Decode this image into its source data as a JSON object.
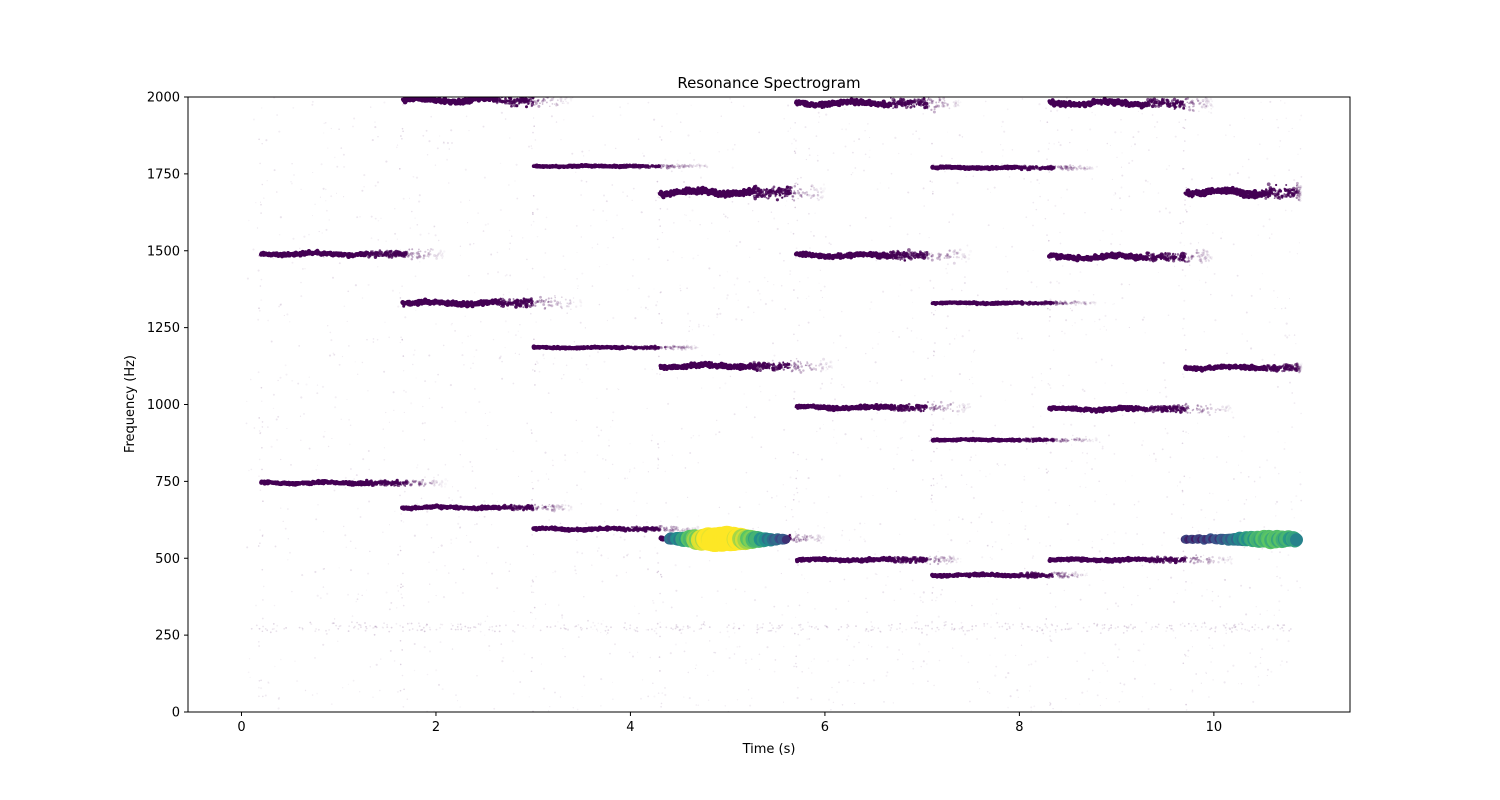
{
  "chart_data": {
    "type": "scatter",
    "title": "Resonance Spectrogram",
    "xlabel": "Time (s)",
    "ylabel": "Frequency (Hz)",
    "xlim": [
      -0.55,
      11.4
    ],
    "ylim": [
      0,
      2000
    ],
    "xticks": [
      0,
      2,
      4,
      6,
      8,
      10
    ],
    "yticks": [
      0,
      250,
      500,
      750,
      1000,
      1250,
      1500,
      1750,
      2000
    ],
    "grid": false,
    "colormap": [
      "#440154",
      "#3b528b",
      "#21918c",
      "#5ec962",
      "#fde725"
    ],
    "tracks": [
      {
        "t0": 0.2,
        "t1": 1.7,
        "freq": 745,
        "jitter": 6,
        "fade_end": 2.1
      },
      {
        "t0": 0.2,
        "t1": 1.7,
        "freq": 1490,
        "jitter": 8,
        "fade_end": 2.1
      },
      {
        "t0": 1.65,
        "t1": 3.0,
        "freq": 665,
        "jitter": 6,
        "fade_end": 3.4
      },
      {
        "t0": 1.65,
        "t1": 3.0,
        "freq": 1330,
        "jitter": 10,
        "fade_end": 3.5
      },
      {
        "t0": 1.65,
        "t1": 3.0,
        "freq": 1990,
        "jitter": 12,
        "fade_end": 3.4
      },
      {
        "t0": 3.0,
        "t1": 4.3,
        "freq": 595,
        "jitter": 5,
        "fade_end": 4.7
      },
      {
        "t0": 3.0,
        "t1": 4.3,
        "freq": 1185,
        "jitter": 3,
        "fade_end": 4.7
      },
      {
        "t0": 3.0,
        "t1": 4.3,
        "freq": 1775,
        "jitter": 3,
        "fade_end": 4.8
      },
      {
        "t0": 4.3,
        "t1": 5.65,
        "freq": 565,
        "jitter": 6,
        "fade_end": 6.0
      },
      {
        "t0": 4.3,
        "t1": 5.65,
        "freq": 1125,
        "jitter": 10,
        "fade_end": 6.1
      },
      {
        "t0": 4.3,
        "t1": 5.65,
        "freq": 1690,
        "jitter": 14,
        "fade_end": 6.0
      },
      {
        "t0": 5.7,
        "t1": 7.05,
        "freq": 495,
        "jitter": 6,
        "fade_end": 7.4
      },
      {
        "t0": 5.7,
        "t1": 7.05,
        "freq": 990,
        "jitter": 8,
        "fade_end": 7.5
      },
      {
        "t0": 5.7,
        "t1": 7.05,
        "freq": 1485,
        "jitter": 10,
        "fade_end": 7.5
      },
      {
        "t0": 5.7,
        "t1": 7.05,
        "freq": 1980,
        "jitter": 12,
        "fade_end": 7.4
      },
      {
        "t0": 7.1,
        "t1": 8.35,
        "freq": 445,
        "jitter": 5,
        "fade_end": 8.7
      },
      {
        "t0": 7.1,
        "t1": 8.35,
        "freq": 885,
        "jitter": 3,
        "fade_end": 8.8
      },
      {
        "t0": 7.1,
        "t1": 8.35,
        "freq": 1330,
        "jitter": 3,
        "fade_end": 8.8
      },
      {
        "t0": 7.1,
        "t1": 8.35,
        "freq": 1770,
        "jitter": 4,
        "fade_end": 8.8
      },
      {
        "t0": 8.3,
        "t1": 9.7,
        "freq": 495,
        "jitter": 6,
        "fade_end": 10.2
      },
      {
        "t0": 8.3,
        "t1": 9.7,
        "freq": 985,
        "jitter": 8,
        "fade_end": 10.2
      },
      {
        "t0": 8.3,
        "t1": 9.7,
        "freq": 1480,
        "jitter": 10,
        "fade_end": 10.0
      },
      {
        "t0": 8.3,
        "t1": 9.7,
        "freq": 1980,
        "jitter": 12,
        "fade_end": 10.0
      },
      {
        "t0": 9.7,
        "t1": 10.85,
        "freq": 1120,
        "jitter": 8,
        "fade_end": 10.9
      },
      {
        "t0": 9.7,
        "t1": 10.85,
        "freq": 1690,
        "jitter": 15,
        "fade_end": 10.9
      }
    ],
    "highlight_series": [
      {
        "t0": 4.4,
        "t1": 5.6,
        "freq": 562,
        "peak_t": 4.95,
        "peak_value": 1.0
      },
      {
        "t0": 9.7,
        "t1": 10.85,
        "freq": 562,
        "peak_t": 10.6,
        "peak_value": 0.55
      }
    ]
  }
}
